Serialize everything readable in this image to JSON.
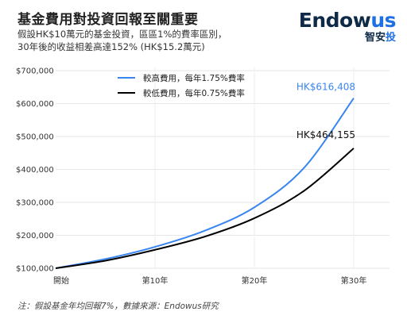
{
  "header": {
    "title": "基金費用對投資回報至關重要",
    "subtitle_line1": "假設HK$10萬元的基金投資，區區1%的費率區別，",
    "subtitle_line2": "30年後的收益相差高達152% (HK$15.2萬元)"
  },
  "logo": {
    "brand_main": "Endow",
    "brand_accent": "us",
    "sub_main": "智安",
    "sub_accent": "投"
  },
  "colors": {
    "high_fee": "#3a86f0",
    "low_fee": "#000000",
    "brand_dark": "#0e2a47",
    "brand_blue": "#1f6fe5"
  },
  "footnote": {
    "text": "注：假設基金年均回報7%，數據來源：Endowus研究"
  },
  "chart_data": {
    "type": "line",
    "ylim": [
      100000,
      700000
    ],
    "yticks": [
      100000,
      200000,
      300000,
      400000,
      500000,
      600000,
      700000
    ],
    "ytick_labels": [
      "$100,000",
      "$200,000",
      "$300,000",
      "$400,000",
      "$500,000",
      "$600,000",
      "$700,000"
    ],
    "xlim": [
      0,
      30
    ],
    "xticks": [
      0,
      10,
      20,
      30
    ],
    "xtick_labels": [
      "開始",
      "第10年",
      "第20年",
      "第30年"
    ],
    "grid": true,
    "legend_placement": "top-center",
    "series": [
      {
        "name": "較高費用，每年1.75%費率",
        "color_key": "high_fee",
        "x": [
          0,
          5,
          10,
          15,
          20,
          25,
          30
        ],
        "values": [
          100000,
          128000,
          165000,
          214000,
          285000,
          405000,
          616408
        ],
        "end_label": "HK$616,408"
      },
      {
        "name": "較低費用，每年0.75%費率",
        "color_key": "low_fee",
        "x": [
          0,
          5,
          10,
          15,
          20,
          25,
          30
        ],
        "values": [
          100000,
          123000,
          156000,
          196000,
          252000,
          335000,
          464155
        ],
        "end_label": "HK$464,155"
      }
    ]
  }
}
